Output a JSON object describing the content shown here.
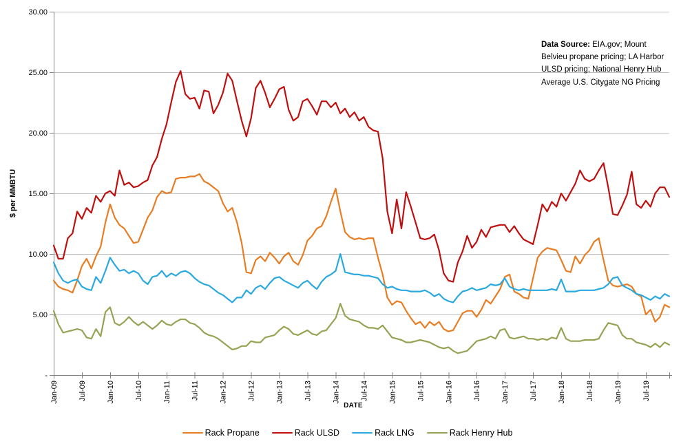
{
  "colors": {
    "background": "#FFFFFF",
    "gridline": "#C0C0C0",
    "axis": "#808080",
    "text": "#000000"
  },
  "chart_data": {
    "type": "line",
    "title": "",
    "xlabel": "DATE",
    "ylabel": "$ per MMBTU",
    "ylim": [
      0,
      30
    ],
    "grid": "horizontal-only",
    "legend_position": "bottom",
    "frequency": "monthly",
    "x_start": "Jan-09",
    "x_end": "Dec-19",
    "x_tick_every_months": 6,
    "x_tick_labels": [
      "Jan-09",
      "Jul-09",
      "Jan-10",
      "Jul-10",
      "Jan-11",
      "Jul-11",
      "Jan-12",
      "Jul-12",
      "Jan-13",
      "Jul-13",
      "Jan-14",
      "Jul-14",
      "Jan-15",
      "Jul-15",
      "Jan-16",
      "Jul-16",
      "Jan-17",
      "Jul-17",
      "Jan-18",
      "Jul-18",
      "Jan-19",
      "Jul-19"
    ],
    "y_ticks": [
      {
        "value": 30,
        "label": "30.00"
      },
      {
        "value": 25,
        "label": "25.00"
      },
      {
        "value": 20,
        "label": "20.00"
      },
      {
        "value": 15,
        "label": "15.00"
      },
      {
        "value": 10,
        "label": "10.00"
      },
      {
        "value": 5,
        "label": "5.00"
      },
      {
        "value": 0,
        "label": "-"
      }
    ],
    "annotation": {
      "label": "Data Source:",
      "text": " EIA.gov; Mount Belvieu propane pricing;  LA Harbor ULSD pricing; National Henry Hub Average U.S. Citygate NG Pricing"
    },
    "series": [
      {
        "name": "Rack Propane",
        "color": "#E87D23",
        "values": [
          7.8,
          7.3,
          7.1,
          7.0,
          6.8,
          7.8,
          9.0,
          9.6,
          8.8,
          9.8,
          10.6,
          12.6,
          14.1,
          13.0,
          12.4,
          12.1,
          11.5,
          10.9,
          11.0,
          12.0,
          13.0,
          13.6,
          14.7,
          15.2,
          15.0,
          15.1,
          16.2,
          16.3,
          16.3,
          16.4,
          16.4,
          16.6,
          16.0,
          15.8,
          15.5,
          15.2,
          14.2,
          13.5,
          13.8,
          12.6,
          10.9,
          8.5,
          8.4,
          9.5,
          9.8,
          9.4,
          10.1,
          9.7,
          9.2,
          9.8,
          10.1,
          9.4,
          9.1,
          9.9,
          11.1,
          11.5,
          12.1,
          12.3,
          13.1,
          14.3,
          15.4,
          13.5,
          11.8,
          11.4,
          11.2,
          11.3,
          11.2,
          11.3,
          11.3,
          9.7,
          8.3,
          6.4,
          5.8,
          6.1,
          6.0,
          5.3,
          4.7,
          4.2,
          4.4,
          3.9,
          4.4,
          4.1,
          4.4,
          3.8,
          3.6,
          3.7,
          4.4,
          5.1,
          5.3,
          5.3,
          4.8,
          5.4,
          6.2,
          5.9,
          6.5,
          7.1,
          8.1,
          8.3,
          6.9,
          6.7,
          6.4,
          6.3,
          8.0,
          9.7,
          10.2,
          10.5,
          10.4,
          10.3,
          9.5,
          8.6,
          8.5,
          9.8,
          9.2,
          9.9,
          10.3,
          11.0,
          11.3,
          9.5,
          7.8,
          7.4,
          7.3,
          7.4,
          7.5,
          7.3,
          6.7,
          6.5,
          5.0,
          5.4,
          4.4,
          4.8,
          5.8,
          5.6
        ]
      },
      {
        "name": "Rack ULSD",
        "color": "#C00F0F",
        "values": [
          10.7,
          9.6,
          9.6,
          11.3,
          11.7,
          13.5,
          12.9,
          13.8,
          13.4,
          14.8,
          14.3,
          15.0,
          15.2,
          14.8,
          16.9,
          15.7,
          15.9,
          15.5,
          15.6,
          15.9,
          16.1,
          17.3,
          18.0,
          19.5,
          20.7,
          22.5,
          24.2,
          25.1,
          23.2,
          22.8,
          22.9,
          22.0,
          23.5,
          23.4,
          21.6,
          22.3,
          23.3,
          24.9,
          24.3,
          22.6,
          21.0,
          19.7,
          21.2,
          23.7,
          24.3,
          23.3,
          22.1,
          22.8,
          23.6,
          23.8,
          21.9,
          21.0,
          21.3,
          22.6,
          22.8,
          22.2,
          21.5,
          22.6,
          22.6,
          22.1,
          22.5,
          21.6,
          22.0,
          21.3,
          21.7,
          21.0,
          21.3,
          20.5,
          20.2,
          20.1,
          17.9,
          13.5,
          11.7,
          14.5,
          12.1,
          15.1,
          13.9,
          12.6,
          11.3,
          11.2,
          11.3,
          11.6,
          10.3,
          8.4,
          7.8,
          7.7,
          9.3,
          10.2,
          11.5,
          10.5,
          11.0,
          12.0,
          11.4,
          12.2,
          12.3,
          12.4,
          12.4,
          11.8,
          12.3,
          11.7,
          11.2,
          11.0,
          10.8,
          12.4,
          14.1,
          13.5,
          14.3,
          13.9,
          15.0,
          14.4,
          15.1,
          15.8,
          16.9,
          16.2,
          16.0,
          16.2,
          16.9,
          17.5,
          15.5,
          13.3,
          13.2,
          14.0,
          14.9,
          16.8,
          14.1,
          13.8,
          14.4,
          13.9,
          15.0,
          15.5,
          15.5,
          14.7
        ]
      },
      {
        "name": "Rack LNG",
        "color": "#29A9DF",
        "values": [
          9.3,
          8.4,
          7.8,
          7.6,
          7.8,
          7.9,
          7.3,
          7.1,
          7.0,
          8.1,
          7.6,
          8.6,
          9.7,
          9.1,
          8.6,
          8.7,
          8.4,
          8.6,
          8.4,
          7.8,
          7.5,
          8.1,
          8.2,
          8.6,
          8.1,
          8.4,
          8.2,
          8.5,
          8.6,
          8.4,
          8.0,
          7.7,
          7.5,
          7.4,
          7.1,
          6.8,
          6.6,
          6.3,
          6.0,
          6.4,
          6.4,
          7.0,
          6.7,
          7.2,
          7.4,
          7.1,
          7.6,
          8.0,
          8.1,
          7.8,
          7.6,
          7.4,
          7.2,
          7.6,
          7.8,
          7.4,
          7.1,
          7.7,
          8.1,
          8.3,
          8.6,
          10.0,
          8.5,
          8.4,
          8.3,
          8.3,
          8.2,
          8.2,
          8.1,
          8.0,
          7.5,
          7.2,
          7.3,
          7.1,
          7.0,
          7.0,
          6.9,
          6.9,
          6.9,
          7.0,
          6.8,
          6.5,
          6.7,
          6.3,
          6.1,
          6.0,
          6.5,
          6.9,
          7.0,
          7.2,
          7.0,
          7.1,
          7.2,
          7.5,
          7.4,
          7.5,
          8.0,
          7.3,
          7.1,
          7.0,
          7.1,
          7.0,
          7.0,
          7.0,
          7.0,
          7.0,
          7.1,
          7.0,
          7.9,
          6.9,
          6.9,
          6.9,
          7.0,
          7.0,
          7.0,
          7.0,
          7.1,
          7.2,
          7.5,
          8.0,
          8.1,
          7.4,
          7.2,
          7.0,
          6.7,
          6.6,
          6.4,
          6.2,
          6.5,
          6.3,
          6.7,
          6.5
        ]
      },
      {
        "name": "Rack Henry Hub",
        "color": "#94A354",
        "values": [
          5.3,
          4.2,
          3.5,
          3.6,
          3.7,
          3.8,
          3.7,
          3.1,
          3.0,
          3.8,
          3.2,
          5.2,
          5.6,
          4.3,
          4.1,
          4.4,
          4.8,
          4.4,
          4.1,
          4.4,
          4.1,
          3.8,
          4.1,
          4.5,
          4.2,
          4.1,
          4.4,
          4.6,
          4.6,
          4.3,
          4.2,
          3.9,
          3.5,
          3.3,
          3.2,
          3.0,
          2.7,
          2.4,
          2.1,
          2.2,
          2.4,
          2.4,
          2.8,
          2.7,
          2.7,
          3.1,
          3.2,
          3.3,
          3.7,
          4.0,
          3.8,
          3.4,
          3.3,
          3.5,
          3.7,
          3.4,
          3.3,
          3.6,
          3.7,
          4.2,
          4.7,
          5.9,
          4.9,
          4.6,
          4.5,
          4.4,
          4.1,
          3.9,
          3.9,
          3.8,
          4.1,
          3.6,
          3.1,
          3.0,
          2.9,
          2.7,
          2.7,
          2.8,
          2.9,
          2.8,
          2.7,
          2.5,
          2.3,
          2.2,
          2.3,
          2.0,
          1.8,
          1.9,
          2.0,
          2.4,
          2.8,
          2.9,
          3.0,
          3.2,
          3.0,
          3.7,
          3.8,
          3.1,
          3.0,
          3.1,
          3.2,
          3.0,
          3.0,
          2.9,
          3.0,
          2.9,
          3.1,
          3.0,
          3.9,
          3.0,
          2.8,
          2.8,
          2.8,
          2.9,
          2.9,
          2.9,
          3.0,
          3.7,
          4.3,
          4.2,
          4.1,
          3.3,
          3.0,
          3.0,
          2.7,
          2.6,
          2.5,
          2.3,
          2.6,
          2.3,
          2.7,
          2.5
        ]
      }
    ]
  }
}
